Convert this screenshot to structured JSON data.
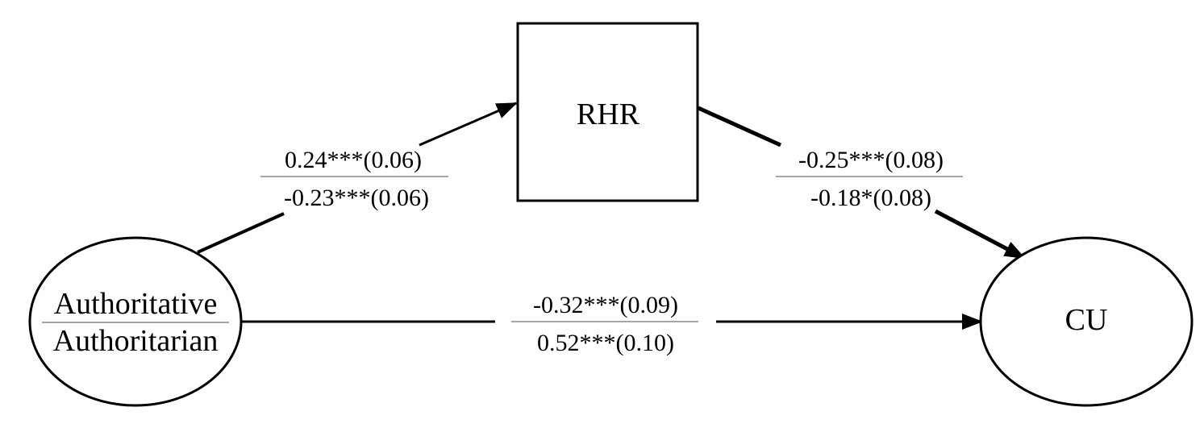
{
  "nodes": {
    "predictor": {
      "top_label": "Authoritative",
      "bottom_label": "Authoritarian"
    },
    "mediator": {
      "label": "RHR"
    },
    "outcome": {
      "label": "CU"
    }
  },
  "paths": {
    "a": {
      "top": "0.24***(0.06)",
      "bottom": "-0.23***(0.06)"
    },
    "b": {
      "top": "-0.25***(0.08)",
      "bottom": "-0.18*(0.08)"
    },
    "c": {
      "top": "-0.32***(0.09)",
      "bottom": "0.52***(0.10)"
    }
  },
  "colors": {
    "stroke": "#000000",
    "divider": "#888888",
    "background": "#ffffff"
  }
}
